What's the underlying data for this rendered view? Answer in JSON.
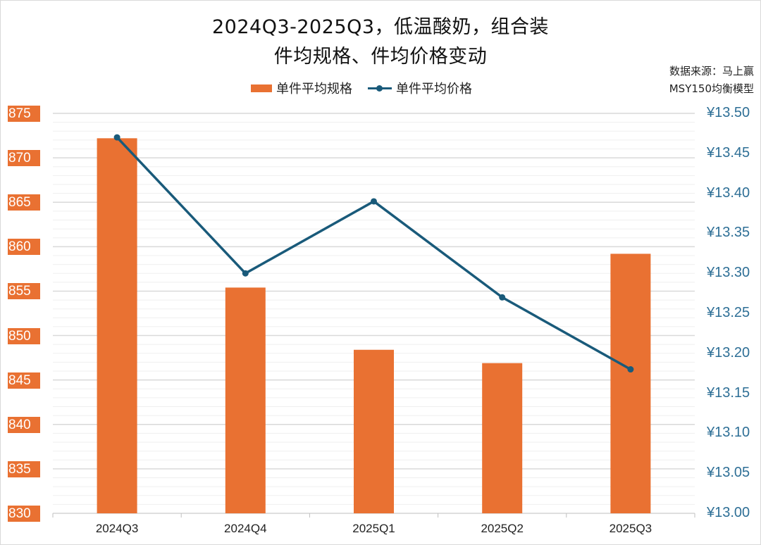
{
  "title": {
    "line1": "2024Q3-2025Q3，低温酸奶，组合装",
    "line2": "件均规格、件均价格变动"
  },
  "source": {
    "line1": "数据来源：马上赢",
    "line2": "MSY150均衡模型"
  },
  "legend": {
    "bar_label": "单件平均规格",
    "line_label": "单件平均价格"
  },
  "colors": {
    "bar": "#E97132",
    "line": "#195A7A",
    "right_axis_text": "#2E6F96",
    "grid_major": "#d9d9d9",
    "grid_minor": "#efefef"
  },
  "axes": {
    "left_ticks": [
      "875",
      "870",
      "865",
      "860",
      "855",
      "850",
      "845",
      "840",
      "835",
      "830"
    ],
    "right_ticks": [
      "¥13.50",
      "¥13.45",
      "¥13.40",
      "¥13.35",
      "¥13.30",
      "¥13.25",
      "¥13.20",
      "¥13.15",
      "¥13.10",
      "¥13.05",
      "¥13.00"
    ],
    "x_ticks": [
      "2024Q3",
      "2024Q4",
      "2025Q1",
      "2025Q2",
      "2025Q3"
    ]
  },
  "chart_data": {
    "type": "bar+line",
    "title": "2024Q3-2025Q3，低温酸奶，组合装 件均规格、件均价格变动",
    "categories": [
      "2024Q3",
      "2024Q4",
      "2025Q1",
      "2025Q2",
      "2025Q3"
    ],
    "series": [
      {
        "name": "单件平均规格",
        "type": "bar",
        "axis": "left",
        "values": [
          872.2,
          855.4,
          848.4,
          846.9,
          859.2
        ]
      },
      {
        "name": "单件平均价格",
        "type": "line",
        "axis": "right",
        "values": [
          13.47,
          13.3,
          13.39,
          13.27,
          13.18
        ]
      }
    ],
    "ylim_left": [
      830,
      875
    ],
    "ylim_right": [
      13.0,
      13.5
    ],
    "left_major_step": 5,
    "right_major_step": 0.05,
    "grid": true,
    "legend_position": "top",
    "annotation": "数据来源：马上赢 MSY150均衡模型"
  }
}
